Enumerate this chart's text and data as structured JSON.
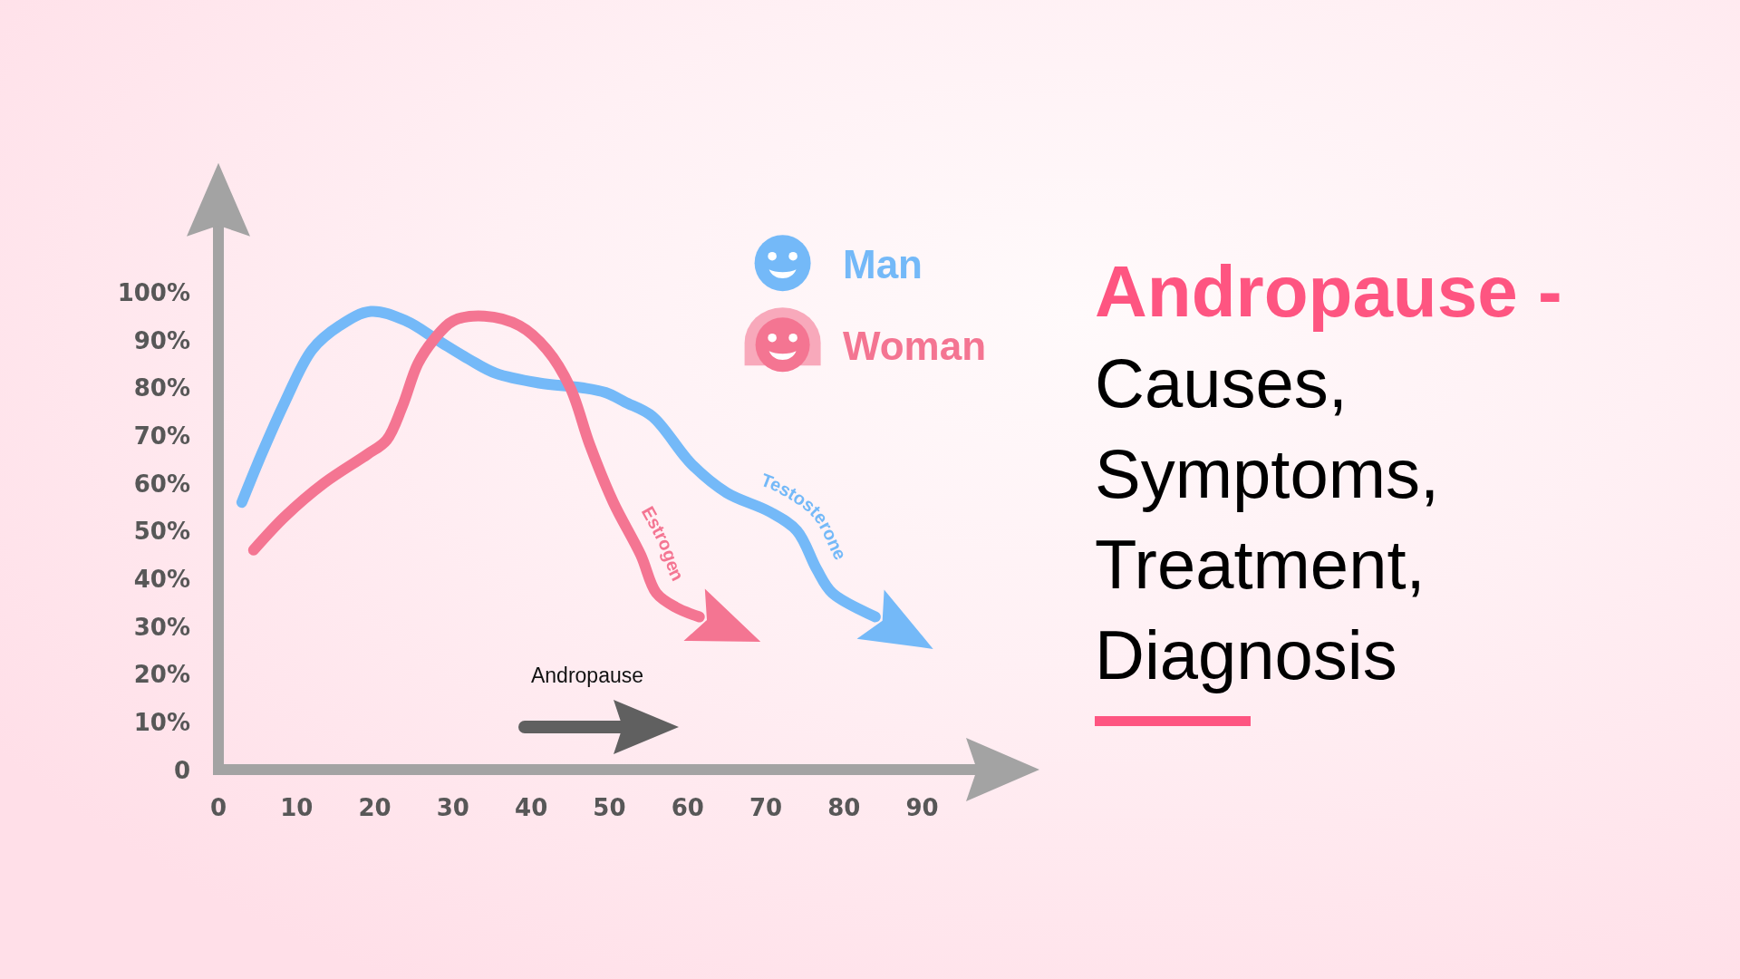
{
  "chart_data": {
    "type": "line",
    "title": "Andropause -",
    "subtitle": "Causes, Symptoms, Treatment, Diagnosis",
    "xlim": [
      0,
      97
    ],
    "xticks": [
      0,
      10,
      20,
      30,
      40,
      50,
      60,
      70,
      80,
      90
    ],
    "ylim": [
      0,
      114
    ],
    "yticks": [
      0,
      {
        "value": 10,
        "label": "10%"
      },
      {
        "value": 20,
        "label": "20%"
      },
      {
        "value": 30,
        "label": "30%"
      },
      {
        "value": 40,
        "label": "40%"
      },
      {
        "value": 50,
        "label": "50%"
      },
      {
        "value": 60,
        "label": "60%"
      },
      {
        "value": 70,
        "label": "70%"
      },
      {
        "value": 80,
        "label": "80%"
      },
      {
        "value": 90,
        "label": "90%"
      },
      {
        "value": 100,
        "label": "100%"
      }
    ],
    "series": [
      {
        "name": "Man",
        "color": "#74b9f8",
        "x": [
          3,
          5.5,
          8.5,
          12,
          15.5,
          19.5,
          24,
          28,
          32,
          35.5,
          41,
          46.5,
          49.5,
          52,
          55.5,
          60.5,
          65,
          70.5,
          74,
          76.5,
          78.5,
          84
        ],
        "values": [
          56,
          66,
          77,
          88,
          93,
          96,
          94,
          90,
          86,
          83,
          81,
          80,
          79,
          77,
          74,
          64,
          58,
          54,
          50,
          42,
          37,
          32
        ]
      },
      {
        "name": "Woman",
        "color": "#f47592",
        "x": [
          4.5,
          8.5,
          13.5,
          19,
          21.5,
          23.5,
          25.5,
          27.5,
          30,
          34,
          38.5,
          42,
          45,
          47.5,
          50.5,
          54,
          56,
          58.5,
          61.5
        ],
        "values": [
          46,
          53,
          60,
          66,
          69,
          76,
          85,
          90,
          94,
          95,
          93,
          88,
          80,
          68,
          56,
          45,
          37,
          34,
          32
        ]
      }
    ],
    "legend": "top right",
    "line_style": "solid",
    "annotations": [
      {
        "text": "Testosterone",
        "x": 74,
        "y": 50
      },
      {
        "text": "Estrogen",
        "x": 54,
        "y": 45
      },
      "Andropause"
    ]
  }
}
